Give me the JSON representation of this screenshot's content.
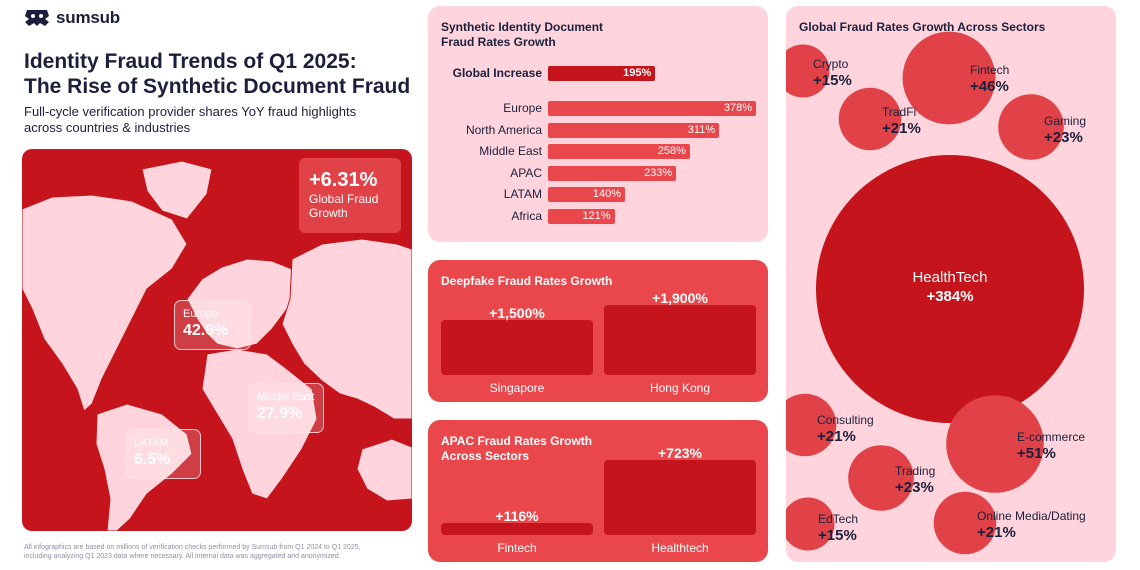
{
  "brand": {
    "name": "sumsub",
    "logo_icon": "sumsub-logo-icon",
    "accent": "#c5141b"
  },
  "header": {
    "title_line1": "Identity Fraud Trends of Q1 2025:",
    "title_line2": "The Rise of Synthetic Document Fraud",
    "subtitle_line1": "Full-cycle verification provider shares YoY fraud highlights",
    "subtitle_line2": "across countries & industries"
  },
  "map": {
    "global_value": "+6.31%",
    "global_label_line1": "Global Fraud",
    "global_label_line2": "Growth",
    "regions": [
      {
        "name": "Europe",
        "value": "42.6%"
      },
      {
        "name": "Middle East",
        "value": "27.9%"
      },
      {
        "name": "LATAM",
        "value": "6.5%"
      }
    ]
  },
  "footer": {
    "line1": "All infographics are based on millions of verification checks performed by Sumsub from Q1 2024 to Q1 2025,",
    "line2": "including analyzing Q1 2023 data where necessary. All internal data was aggregated and anonymized."
  },
  "chart_data": [
    {
      "type": "bar",
      "orientation": "horizontal",
      "title_line1": "Synthetic Identity Document",
      "title_line2": "Fraud Rates Growth",
      "highlight": {
        "category": "Global Increase",
        "value": 195,
        "label": "195%"
      },
      "categories": [
        "Europe",
        "North America",
        "Middle East",
        "APAC",
        "LATAM",
        "Africa"
      ],
      "values": [
        378,
        311,
        258,
        233,
        140,
        121
      ],
      "value_labels": [
        "378%",
        "311%",
        "258%",
        "233%",
        "140%",
        "121%"
      ],
      "colors": {
        "highlight": "#c5141b",
        "bars": "#e9474c"
      }
    },
    {
      "type": "bar",
      "title_line1": "Deepfake Fraud Rates Growth",
      "categories": [
        "Singapore",
        "Hong Kong"
      ],
      "values": [
        1500,
        1900
      ],
      "value_labels": [
        "+1,500%",
        "+1,900%"
      ]
    },
    {
      "type": "bar",
      "title_line1": "APAC Fraud Rates Growth",
      "title_line2": "Across Sectors",
      "categories": [
        "Fintech",
        "Healthtech"
      ],
      "values": [
        116,
        723
      ],
      "value_labels": [
        "+116%",
        "+723%"
      ]
    },
    {
      "type": "scatter",
      "encoding": "bubble",
      "title_line1": "Global Fraud Rates Growth Across Sectors",
      "categories": [
        "Crypto",
        "Fintech",
        "TradFi",
        "Gaming",
        "HealthTech",
        "Consulting",
        "E-commerce",
        "Trading",
        "EdTech",
        "Online Media/Dating"
      ],
      "values": [
        15,
        46,
        21,
        23,
        384,
        21,
        51,
        23,
        15,
        21
      ],
      "value_labels": [
        "+15%",
        "+46%",
        "+21%",
        "+23%",
        "+384%",
        "+21%",
        "+51%",
        "+23%",
        "+15%",
        "+21%"
      ]
    }
  ]
}
